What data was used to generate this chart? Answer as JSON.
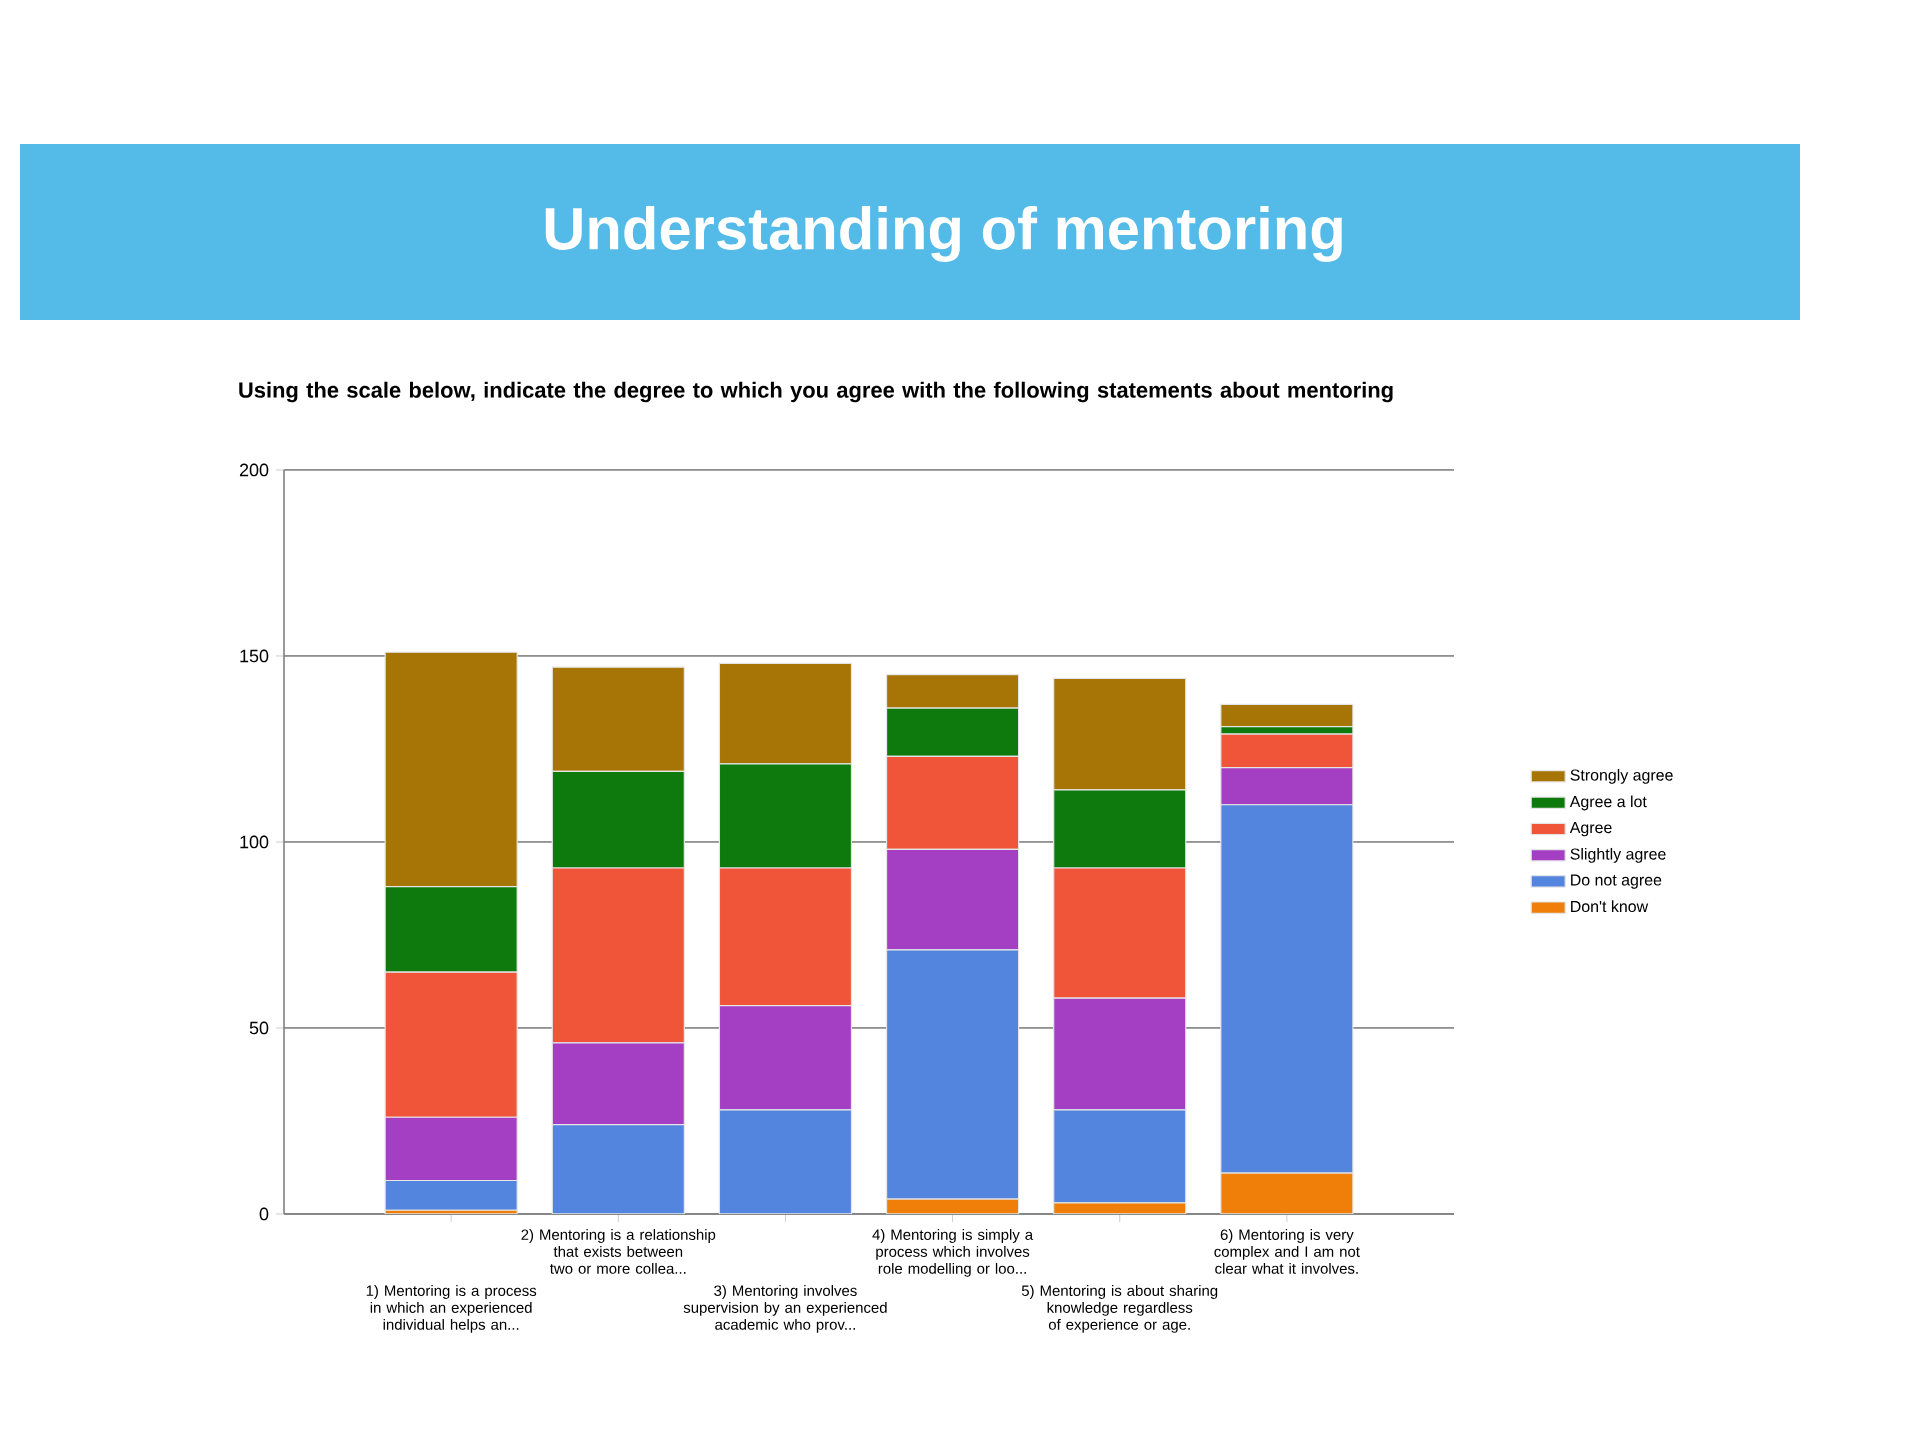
{
  "chart_data": {
    "type": "bar",
    "stacked": true,
    "title": "Understanding of mentoring",
    "subtitle": "Using the scale below, indicate the degree to which you agree with the following statements about mentoring",
    "categories": [
      "1) Mentoring is a process in which an experienced individual helps an...",
      "2) Mentoring is a relationship that exists between two or more collea...",
      "3) Mentoring involves supervision by an experienced academic who prov...",
      "4) Mentoring is simply a process which involves role modelling or loo...",
      "5) Mentoring is about sharing knowledge regardless of experience or age.",
      "6) Mentoring is very complex and I am not clear what it involves."
    ],
    "series": [
      {
        "name": "Don't know",
        "color": "#f07f09",
        "values": [
          1,
          0,
          0,
          4,
          3,
          11
        ]
      },
      {
        "name": "Do not agree",
        "color": "#5485de",
        "values": [
          8,
          24,
          28,
          67,
          25,
          99
        ]
      },
      {
        "name": "Slightly agree",
        "color": "#a43fc4",
        "values": [
          17,
          22,
          28,
          27,
          30,
          10
        ]
      },
      {
        "name": "Agree",
        "color": "#f0553a",
        "values": [
          39,
          47,
          37,
          25,
          35,
          9
        ]
      },
      {
        "name": "Agree a lot",
        "color": "#0e7a0d",
        "values": [
          23,
          26,
          28,
          13,
          21,
          2
        ]
      },
      {
        "name": "Strongly agree",
        "color": "#a77406",
        "values": [
          63,
          28,
          27,
          9,
          30,
          6
        ]
      }
    ],
    "ylim": [
      0,
      200
    ],
    "yticks": [
      0,
      50,
      100,
      150,
      200
    ],
    "grid": "y",
    "legend": "right"
  }
}
